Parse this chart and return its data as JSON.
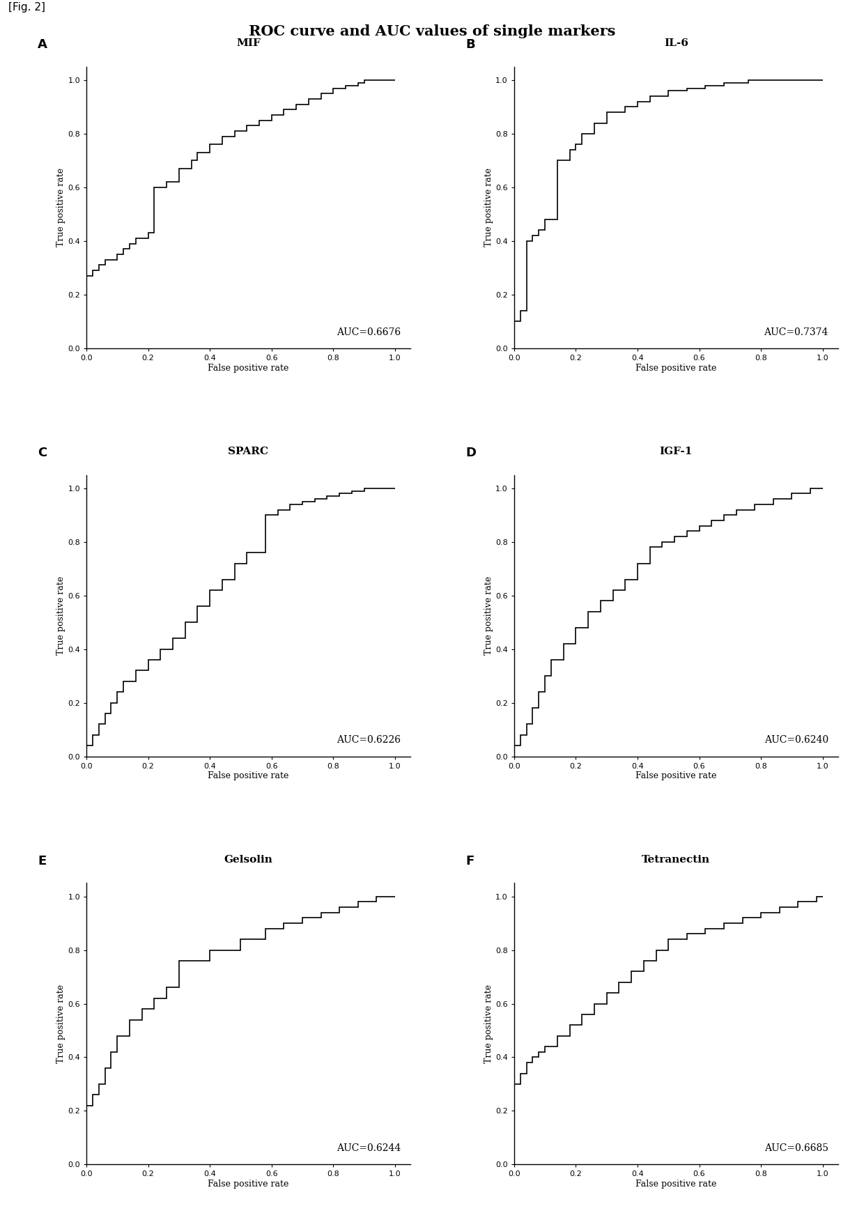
{
  "title": "ROC curve and AUC values of single markers",
  "fig_label": "[Fig. 2]",
  "panels": [
    {
      "label": "A",
      "marker": "MIF",
      "auc": "AUC=0.6676",
      "fpr": [
        0.0,
        0.0,
        0.02,
        0.02,
        0.04,
        0.04,
        0.06,
        0.06,
        0.1,
        0.1,
        0.12,
        0.12,
        0.14,
        0.14,
        0.16,
        0.16,
        0.2,
        0.2,
        0.22,
        0.22,
        0.26,
        0.26,
        0.3,
        0.3,
        0.34,
        0.34,
        0.36,
        0.36,
        0.4,
        0.4,
        0.44,
        0.44,
        0.48,
        0.48,
        0.52,
        0.52,
        0.56,
        0.56,
        0.6,
        0.6,
        0.64,
        0.64,
        0.68,
        0.68,
        0.72,
        0.72,
        0.76,
        0.76,
        0.8,
        0.8,
        0.84,
        0.84,
        0.88,
        0.88,
        0.9,
        0.9,
        0.94,
        0.94,
        1.0
      ],
      "tpr": [
        0.0,
        0.27,
        0.27,
        0.29,
        0.29,
        0.31,
        0.31,
        0.33,
        0.33,
        0.35,
        0.35,
        0.37,
        0.37,
        0.39,
        0.39,
        0.41,
        0.41,
        0.43,
        0.43,
        0.6,
        0.6,
        0.62,
        0.62,
        0.67,
        0.67,
        0.7,
        0.7,
        0.73,
        0.73,
        0.76,
        0.76,
        0.79,
        0.79,
        0.81,
        0.81,
        0.83,
        0.83,
        0.85,
        0.85,
        0.87,
        0.87,
        0.89,
        0.89,
        0.91,
        0.91,
        0.93,
        0.93,
        0.95,
        0.95,
        0.97,
        0.97,
        0.98,
        0.98,
        0.99,
        0.99,
        1.0,
        1.0,
        1.0,
        1.0
      ]
    },
    {
      "label": "B",
      "marker": "IL-6",
      "auc": "AUC=0.7374",
      "fpr": [
        0.0,
        0.0,
        0.02,
        0.02,
        0.04,
        0.04,
        0.06,
        0.06,
        0.08,
        0.08,
        0.1,
        0.1,
        0.14,
        0.14,
        0.18,
        0.18,
        0.2,
        0.2,
        0.22,
        0.22,
        0.26,
        0.26,
        0.3,
        0.3,
        0.36,
        0.36,
        0.4,
        0.4,
        0.44,
        0.44,
        0.5,
        0.5,
        0.56,
        0.56,
        0.62,
        0.62,
        0.68,
        0.68,
        0.76,
        0.76,
        0.84,
        0.84,
        0.92,
        0.92,
        1.0
      ],
      "tpr": [
        0.0,
        0.1,
        0.1,
        0.14,
        0.14,
        0.4,
        0.4,
        0.42,
        0.42,
        0.44,
        0.44,
        0.48,
        0.48,
        0.7,
        0.7,
        0.74,
        0.74,
        0.76,
        0.76,
        0.8,
        0.8,
        0.84,
        0.84,
        0.88,
        0.88,
        0.9,
        0.9,
        0.92,
        0.92,
        0.94,
        0.94,
        0.96,
        0.96,
        0.97,
        0.97,
        0.98,
        0.98,
        0.99,
        0.99,
        1.0,
        1.0,
        1.0,
        1.0,
        1.0,
        1.0
      ]
    },
    {
      "label": "C",
      "marker": "SPARC",
      "auc": "AUC=0.6226",
      "fpr": [
        0.0,
        0.0,
        0.02,
        0.02,
        0.04,
        0.04,
        0.06,
        0.06,
        0.08,
        0.08,
        0.1,
        0.1,
        0.12,
        0.12,
        0.16,
        0.16,
        0.2,
        0.2,
        0.24,
        0.24,
        0.28,
        0.28,
        0.32,
        0.32,
        0.36,
        0.36,
        0.4,
        0.4,
        0.44,
        0.44,
        0.48,
        0.48,
        0.52,
        0.52,
        0.58,
        0.58,
        0.62,
        0.62,
        0.66,
        0.66,
        0.7,
        0.7,
        0.74,
        0.74,
        0.78,
        0.78,
        0.82,
        0.82,
        0.86,
        0.86,
        0.9,
        0.9,
        0.94,
        0.94,
        0.98,
        0.98,
        1.0
      ],
      "tpr": [
        0.0,
        0.04,
        0.04,
        0.08,
        0.08,
        0.12,
        0.12,
        0.16,
        0.16,
        0.2,
        0.2,
        0.24,
        0.24,
        0.28,
        0.28,
        0.32,
        0.32,
        0.36,
        0.36,
        0.4,
        0.4,
        0.44,
        0.44,
        0.5,
        0.5,
        0.56,
        0.56,
        0.62,
        0.62,
        0.66,
        0.66,
        0.72,
        0.72,
        0.76,
        0.76,
        0.9,
        0.9,
        0.92,
        0.92,
        0.94,
        0.94,
        0.95,
        0.95,
        0.96,
        0.96,
        0.97,
        0.97,
        0.98,
        0.98,
        0.99,
        0.99,
        1.0,
        1.0,
        1.0,
        1.0,
        1.0,
        1.0
      ]
    },
    {
      "label": "D",
      "marker": "IGF-1",
      "auc": "AUC=0.6240",
      "fpr": [
        0.0,
        0.0,
        0.02,
        0.02,
        0.04,
        0.04,
        0.06,
        0.06,
        0.08,
        0.08,
        0.1,
        0.1,
        0.12,
        0.12,
        0.16,
        0.16,
        0.2,
        0.2,
        0.24,
        0.24,
        0.28,
        0.28,
        0.32,
        0.32,
        0.36,
        0.36,
        0.4,
        0.4,
        0.44,
        0.44,
        0.48,
        0.48,
        0.52,
        0.52,
        0.56,
        0.56,
        0.6,
        0.6,
        0.64,
        0.64,
        0.68,
        0.68,
        0.72,
        0.72,
        0.78,
        0.78,
        0.84,
        0.84,
        0.9,
        0.9,
        0.96,
        0.96,
        1.0
      ],
      "tpr": [
        0.0,
        0.04,
        0.04,
        0.08,
        0.08,
        0.12,
        0.12,
        0.18,
        0.18,
        0.24,
        0.24,
        0.3,
        0.3,
        0.36,
        0.36,
        0.42,
        0.42,
        0.48,
        0.48,
        0.54,
        0.54,
        0.58,
        0.58,
        0.62,
        0.62,
        0.66,
        0.66,
        0.72,
        0.72,
        0.78,
        0.78,
        0.8,
        0.8,
        0.82,
        0.82,
        0.84,
        0.84,
        0.86,
        0.86,
        0.88,
        0.88,
        0.9,
        0.9,
        0.92,
        0.92,
        0.94,
        0.94,
        0.96,
        0.96,
        0.98,
        0.98,
        1.0,
        1.0
      ]
    },
    {
      "label": "E",
      "marker": "Gelsolin",
      "auc": "AUC=0.6244",
      "fpr": [
        0.0,
        0.0,
        0.02,
        0.02,
        0.04,
        0.04,
        0.06,
        0.06,
        0.08,
        0.08,
        0.1,
        0.1,
        0.14,
        0.14,
        0.18,
        0.18,
        0.22,
        0.22,
        0.26,
        0.26,
        0.3,
        0.3,
        0.4,
        0.4,
        0.5,
        0.5,
        0.58,
        0.58,
        0.64,
        0.64,
        0.7,
        0.7,
        0.76,
        0.76,
        0.82,
        0.82,
        0.88,
        0.88,
        0.94,
        0.94,
        1.0
      ],
      "tpr": [
        0.0,
        0.22,
        0.22,
        0.26,
        0.26,
        0.3,
        0.3,
        0.36,
        0.36,
        0.42,
        0.42,
        0.48,
        0.48,
        0.54,
        0.54,
        0.58,
        0.58,
        0.62,
        0.62,
        0.66,
        0.66,
        0.76,
        0.76,
        0.8,
        0.8,
        0.84,
        0.84,
        0.88,
        0.88,
        0.9,
        0.9,
        0.92,
        0.92,
        0.94,
        0.94,
        0.96,
        0.96,
        0.98,
        0.98,
        1.0,
        1.0
      ]
    },
    {
      "label": "F",
      "marker": "Tetranectin",
      "auc": "AUC=0.6685",
      "fpr": [
        0.0,
        0.0,
        0.02,
        0.02,
        0.04,
        0.04,
        0.06,
        0.06,
        0.08,
        0.08,
        0.1,
        0.1,
        0.14,
        0.14,
        0.18,
        0.18,
        0.22,
        0.22,
        0.26,
        0.26,
        0.3,
        0.3,
        0.34,
        0.34,
        0.38,
        0.38,
        0.42,
        0.42,
        0.46,
        0.46,
        0.5,
        0.5,
        0.56,
        0.56,
        0.62,
        0.62,
        0.68,
        0.68,
        0.74,
        0.74,
        0.8,
        0.8,
        0.86,
        0.86,
        0.92,
        0.92,
        0.98,
        0.98,
        1.0
      ],
      "tpr": [
        0.0,
        0.3,
        0.3,
        0.34,
        0.34,
        0.38,
        0.38,
        0.4,
        0.4,
        0.42,
        0.42,
        0.44,
        0.44,
        0.48,
        0.48,
        0.52,
        0.52,
        0.56,
        0.56,
        0.6,
        0.6,
        0.64,
        0.64,
        0.68,
        0.68,
        0.72,
        0.72,
        0.76,
        0.76,
        0.8,
        0.8,
        0.84,
        0.84,
        0.86,
        0.86,
        0.88,
        0.88,
        0.9,
        0.9,
        0.92,
        0.92,
        0.94,
        0.94,
        0.96,
        0.96,
        0.98,
        0.98,
        1.0,
        1.0
      ]
    }
  ],
  "line_color": "#000000",
  "line_width": 1.2,
  "background_color": "#ffffff",
  "xlabel": "False positive rate",
  "ylabel": "True positive rate",
  "xlim": [
    0.0,
    1.05
  ],
  "ylim": [
    0.0,
    1.05
  ],
  "xticks": [
    0.0,
    0.2,
    0.4,
    0.6,
    0.8,
    1.0
  ],
  "yticks": [
    0.0,
    0.2,
    0.4,
    0.6,
    0.8,
    1.0
  ],
  "tick_fontsize": 8,
  "axis_label_fontsize": 9,
  "title_fontsize": 15,
  "panel_label_fontsize": 13,
  "marker_fontsize": 11,
  "auc_fontsize": 10
}
